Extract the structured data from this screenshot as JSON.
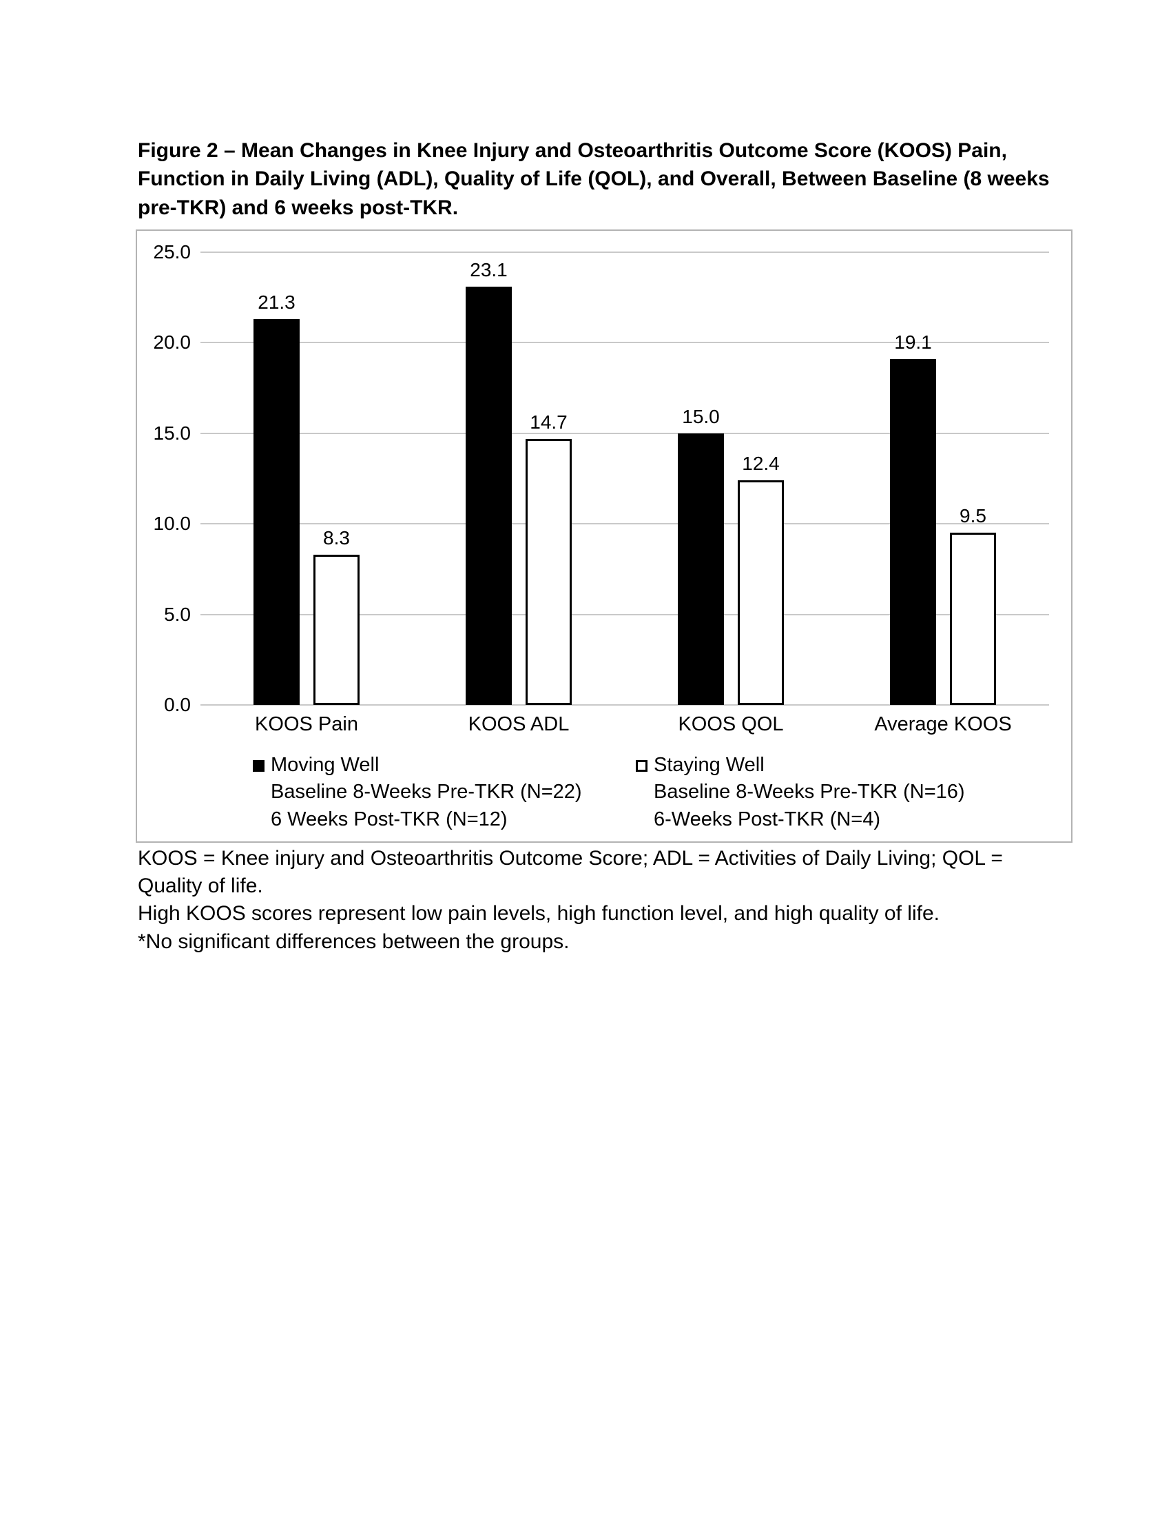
{
  "figure": {
    "caption": "Figure 2 – Mean Changes in Knee Injury and Osteoarthritis Outcome Score (KOOS) Pain, Function in Daily Living (ADL), Quality of Life (QOL), and Overall, Between Baseline (8 weeks pre-TKR) and 6 weeks post-TKR."
  },
  "chart_data": {
    "type": "bar",
    "categories": [
      "KOOS Pain",
      "KOOS ADL",
      "KOOS QOL",
      "Average KOOS"
    ],
    "series": [
      {
        "name": "Moving Well",
        "fill": "#000000",
        "style": "filled",
        "values": [
          21.3,
          23.1,
          15.0,
          19.1
        ]
      },
      {
        "name": "Staying Well",
        "fill": "#ffffff",
        "style": "open",
        "values": [
          8.3,
          14.7,
          12.4,
          9.5
        ]
      }
    ],
    "ylim": [
      0,
      25
    ],
    "ytick_interval": 5,
    "yticks": [
      {
        "label": "25.0",
        "value": 25
      },
      {
        "label": "20.0",
        "value": 20
      },
      {
        "label": "15.0",
        "value": 15
      },
      {
        "label": "10.0",
        "value": 10
      },
      {
        "label": "5.0",
        "value": 5
      },
      {
        "label": "0.0",
        "value": 0
      }
    ],
    "grid": true,
    "legend_position": "bottom",
    "title": "",
    "xlabel": "",
    "ylabel": ""
  },
  "legend": {
    "moving_well": {
      "title": "Moving Well",
      "line2": "Baseline 8-Weeks Pre-TKR (N=22)",
      "line3": "6 Weeks Post-TKR (N=12)"
    },
    "staying_well": {
      "title": "Staying Well",
      "line2": "Baseline 8-Weeks Pre-TKR (N=16)",
      "line3": "6-Weeks Post-TKR (N=4)"
    }
  },
  "footnotes": [
    "KOOS = Knee injury and Osteoarthritis Outcome Score; ADL = Activities of Daily Living; QOL = Quality of life.",
    "High KOOS scores represent low pain levels, high function level, and high quality of life.",
    "*No significant differences between the groups."
  ],
  "colors": {
    "bar_filled": "#000000",
    "bar_open_border": "#000000",
    "gridline": "#c9c9c9",
    "chart_border": "#b3b3b3",
    "text": "#000000"
  }
}
